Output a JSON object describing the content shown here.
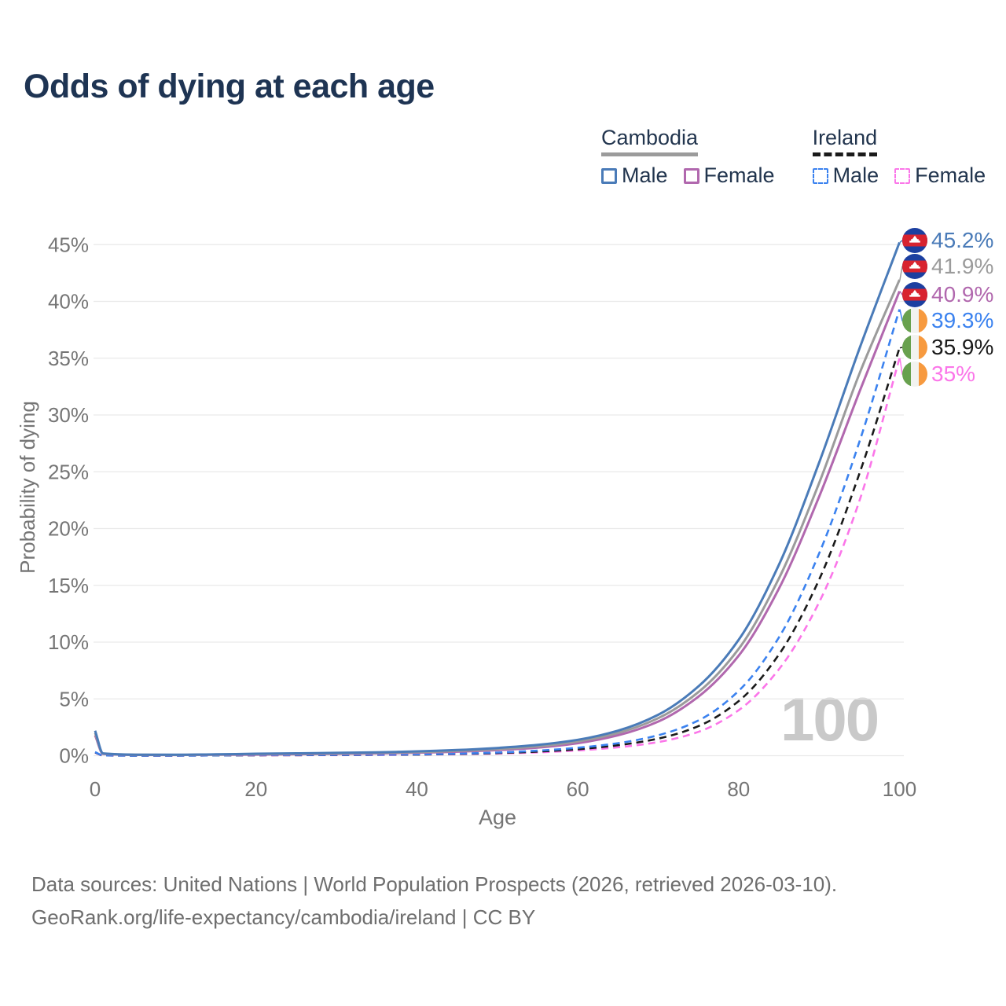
{
  "header": {
    "title": "Odds of dying at each age"
  },
  "legend": {
    "groups": [
      {
        "label": "Cambodia",
        "line_style": "solid",
        "line_color": "#9b9b9b",
        "items": [
          {
            "label": "Male",
            "color": "#4a7bb8"
          },
          {
            "label": "Female",
            "color": "#b168ae"
          }
        ]
      },
      {
        "label": "Ireland",
        "line_style": "dashed",
        "line_color": "#1a1a1a",
        "items": [
          {
            "label": "Male",
            "color": "#3b82ef"
          },
          {
            "label": "Female",
            "color": "#fb76e9"
          }
        ]
      }
    ]
  },
  "chart_data": {
    "type": "line",
    "title": "Odds of dying at each age",
    "xlabel": "Age",
    "ylabel": "Probability of dying",
    "xlim": [
      0,
      100
    ],
    "ylim_pct": [
      0,
      47
    ],
    "grid": "horizontal",
    "legend_position": "top-right",
    "hover_age_label": "100",
    "x_ticks": [
      {
        "value": 0,
        "label": "0"
      },
      {
        "value": 20,
        "label": "20"
      },
      {
        "value": 40,
        "label": "40"
      },
      {
        "value": 60,
        "label": "60"
      },
      {
        "value": 80,
        "label": "80"
      },
      {
        "value": 100,
        "label": "100"
      }
    ],
    "y_ticks": [
      {
        "value": 0,
        "label": "0%"
      },
      {
        "value": 5,
        "label": "5%"
      },
      {
        "value": 10,
        "label": "10%"
      },
      {
        "value": 15,
        "label": "15%"
      },
      {
        "value": 20,
        "label": "20%"
      },
      {
        "value": 25,
        "label": "25%"
      },
      {
        "value": 30,
        "label": "30%"
      },
      {
        "value": 35,
        "label": "35%"
      },
      {
        "value": 40,
        "label": "40%"
      },
      {
        "value": 45,
        "label": "45%"
      }
    ],
    "ages": [
      0,
      1,
      5,
      10,
      15,
      20,
      25,
      30,
      35,
      40,
      45,
      50,
      55,
      60,
      65,
      70,
      75,
      80,
      85,
      90,
      95,
      100
    ],
    "series": [
      {
        "name": "Cambodia Male",
        "country": "Cambodia",
        "sex": "Male",
        "flag": "kh",
        "line_style": "solid",
        "color": "#4a7bb8",
        "end_label": "45.2%",
        "values_pct": [
          2.2,
          0.2,
          0.09,
          0.08,
          0.12,
          0.17,
          0.21,
          0.25,
          0.3,
          0.38,
          0.5,
          0.68,
          0.95,
          1.4,
          2.2,
          3.6,
          6.1,
          10.2,
          16.8,
          25.8,
          35.8,
          45.2
        ]
      },
      {
        "name": "Cambodia",
        "country": "Cambodia",
        "sex": "Both sexes",
        "flag": "kh",
        "line_style": "solid",
        "color": "#9b9b9b",
        "end_label": "41.9%",
        "values_pct": [
          2.0,
          0.18,
          0.08,
          0.07,
          0.1,
          0.14,
          0.17,
          0.2,
          0.25,
          0.31,
          0.42,
          0.58,
          0.82,
          1.25,
          2.0,
          3.3,
          5.6,
          9.4,
          15.6,
          24.0,
          33.6,
          41.9
        ]
      },
      {
        "name": "Cambodia Female",
        "country": "Cambodia",
        "sex": "Female",
        "flag": "kh",
        "line_style": "solid",
        "color": "#b168ae",
        "end_label": "40.9%",
        "values_pct": [
          1.8,
          0.16,
          0.07,
          0.06,
          0.08,
          0.1,
          0.13,
          0.16,
          0.2,
          0.26,
          0.35,
          0.49,
          0.71,
          1.1,
          1.8,
          3.0,
          5.2,
          8.8,
          14.7,
          22.8,
          32.0,
          40.9
        ]
      },
      {
        "name": "Ireland Male",
        "country": "Ireland",
        "sex": "Male",
        "flag": "ie",
        "line_style": "dashed",
        "color": "#3b82ef",
        "end_label": "39.3%",
        "values_pct": [
          0.32,
          0.03,
          0.01,
          0.01,
          0.03,
          0.05,
          0.06,
          0.07,
          0.09,
          0.12,
          0.18,
          0.28,
          0.44,
          0.7,
          1.1,
          1.8,
          3.1,
          5.7,
          10.4,
          17.8,
          27.6,
          39.3
        ]
      },
      {
        "name": "Ireland",
        "country": "Ireland",
        "sex": "Both sexes",
        "flag": "ie",
        "line_style": "dashed",
        "color": "#1a1a1a",
        "end_label": "35.9%",
        "values_pct": [
          0.29,
          0.02,
          0.01,
          0.01,
          0.02,
          0.04,
          0.05,
          0.06,
          0.08,
          0.1,
          0.15,
          0.23,
          0.36,
          0.57,
          0.92,
          1.5,
          2.6,
          4.8,
          8.9,
          15.5,
          24.8,
          35.9
        ]
      },
      {
        "name": "Ireland Female",
        "country": "Ireland",
        "sex": "Female",
        "flag": "ie",
        "line_style": "dashed",
        "color": "#fb76e9",
        "end_label": "35%",
        "values_pct": [
          0.26,
          0.02,
          0.01,
          0.01,
          0.02,
          0.03,
          0.04,
          0.05,
          0.06,
          0.09,
          0.13,
          0.19,
          0.29,
          0.46,
          0.74,
          1.2,
          2.1,
          4.0,
          7.6,
          13.5,
          22.4,
          35.0
        ]
      }
    ]
  },
  "footer": {
    "line1": "Data sources: United Nations | World Population Prospects (2026, retrieved 2026-03-10).",
    "line2": "GeoRank.org/life-expectancy/cambodia/ireland | CC BY"
  }
}
